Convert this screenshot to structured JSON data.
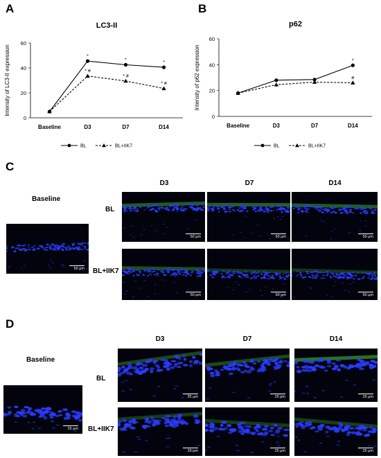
{
  "panels": {
    "A": "A",
    "B": "B",
    "C": "C",
    "D": "D"
  },
  "chart_data": [
    {
      "type": "line",
      "title": "LC3-II",
      "ylabel": "Intensity of LC3-II expression",
      "xlabel": "",
      "categories": [
        "Baseline",
        "D3",
        "D7",
        "D14"
      ],
      "ylim": [
        0,
        60
      ],
      "yticks": [
        "0",
        "20",
        "40",
        "60"
      ],
      "series": [
        {
          "name": "BL",
          "values": [
            5,
            45.5,
            42.5,
            40.5
          ],
          "annotations": [
            "",
            "*",
            "*",
            "*"
          ],
          "style": "solid",
          "marker": "circle"
        },
        {
          "name": "BL+IIK7",
          "values": [
            5,
            33.5,
            29.5,
            23.5
          ],
          "annotations": [
            "",
            "* #",
            "* #",
            "* #"
          ],
          "style": "dashed",
          "marker": "triangle"
        }
      ],
      "legend": "bottom"
    },
    {
      "type": "line",
      "title": "p62",
      "ylabel": "Intensity of p62 expression",
      "xlabel": "",
      "categories": [
        "Baseline",
        "D3",
        "D7",
        "D14"
      ],
      "ylim": [
        0,
        60
      ],
      "yticks": [
        "0",
        "20",
        "40",
        "60"
      ],
      "series": [
        {
          "name": "BL",
          "values": [
            18,
            28,
            28.5,
            39.5
          ],
          "annotations": [
            "",
            "",
            "",
            "*"
          ],
          "style": "solid",
          "marker": "circle"
        },
        {
          "name": "BL+IIK7",
          "values": [
            18,
            24.5,
            26.5,
            26
          ],
          "annotations": [
            "",
            "",
            "",
            "#"
          ],
          "style": "dashed",
          "marker": "triangle"
        }
      ],
      "legend": "bottom"
    }
  ],
  "panel_c": {
    "baseline_label": "Baseline",
    "columns": [
      "D3",
      "D7",
      "D14"
    ],
    "rows": [
      "BL",
      "BL+IIK7"
    ],
    "scale": "50 μm"
  },
  "panel_d": {
    "baseline_label": "Baseline",
    "columns": [
      "D3",
      "D7",
      "D14"
    ],
    "rows": [
      "BL",
      "BL+IIK7"
    ],
    "scale": "25 μm"
  },
  "colors": {
    "nuclei": "#2a3cff",
    "stain": "#3fae2c",
    "background": "#02030c"
  }
}
